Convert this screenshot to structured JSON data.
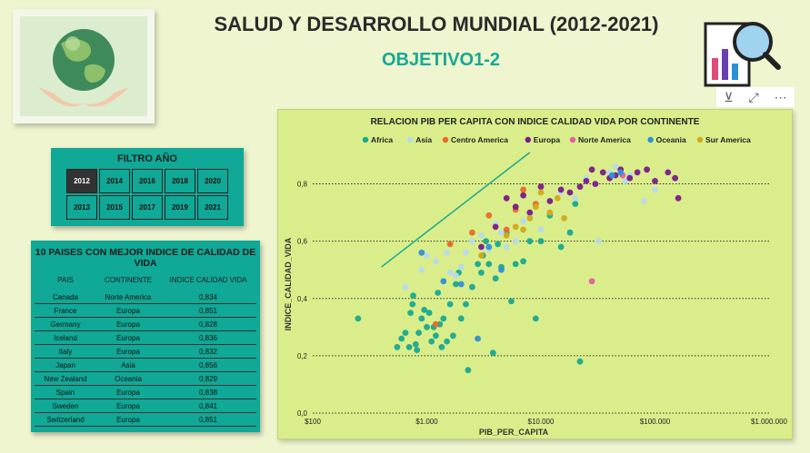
{
  "header": {
    "title": "SALUD Y DESARROLLO MUNDIAL (2012-2021)",
    "subtitle": "OBJETIVO1-2"
  },
  "icons": {
    "logo": "globe-hands-icon",
    "report": "report-search-icon",
    "filter": "filter-icon",
    "focus": "focus-mode-icon",
    "more": "more-options-icon"
  },
  "filter": {
    "title": "FILTRO AÑO",
    "years": [
      "2012",
      "2014",
      "2016",
      "2018",
      "2020",
      "2013",
      "2015",
      "2017",
      "2019",
      "2021"
    ],
    "selected": "2012"
  },
  "table": {
    "title": "10 PAISES CON MEJOR INDICE DE CALIDAD DE VIDA",
    "columns": [
      "PAIS",
      "CONTINENTE",
      "INDICE CALIDAD VIDA"
    ],
    "rows": [
      [
        "Canada",
        "Norte America",
        "0,834"
      ],
      [
        "France",
        "Europa",
        "0,851"
      ],
      [
        "Germany",
        "Europa",
        "0,828"
      ],
      [
        "Iceland",
        "Europa",
        "0,836"
      ],
      [
        "Italy",
        "Europa",
        "0,832"
      ],
      [
        "Japan",
        "Asia",
        "0,856"
      ],
      [
        "New Zealand",
        "Oceania",
        "0,829"
      ],
      [
        "Spain",
        "Europa",
        "0,838"
      ],
      [
        "Sweden",
        "Europa",
        "0,841"
      ],
      [
        "Switzerland",
        "Europa",
        "0,851"
      ]
    ]
  },
  "chart_data": {
    "type": "scatter",
    "title": "RELACION PIB PER CAPITA CON INDICE CALIDAD VIDA POR CONTINENTE",
    "xlabel": "PIB_PER_CAPITA",
    "ylabel": "INDICE_CALIDAD_VIDA",
    "x_scale": "log",
    "xlim": [
      100,
      1000000
    ],
    "ylim": [
      0,
      0.9
    ],
    "x_ticks": [
      {
        "value": 100,
        "label": "$100"
      },
      {
        "value": 1000,
        "label": "$1.000"
      },
      {
        "value": 10000,
        "label": "$10.000"
      },
      {
        "value": 100000,
        "label": "$100.000"
      },
      {
        "value": 1000000,
        "label": "$1.000.000"
      }
    ],
    "y_ticks": [
      {
        "value": 0,
        "label": "0,0"
      },
      {
        "value": 0.2,
        "label": "0,2"
      },
      {
        "value": 0.4,
        "label": "0,4"
      },
      {
        "value": 0.6,
        "label": "0,6"
      },
      {
        "value": 0.8,
        "label": "0,8"
      }
    ],
    "grid": "horizontal dotted",
    "legend_position": "top",
    "trend_line": [
      [
        400,
        0.51
      ],
      [
        8000,
        0.91
      ]
    ],
    "series": [
      {
        "name": "Africa",
        "color": "#19a88f",
        "points": [
          [
            250,
            0.33
          ],
          [
            550,
            0.23
          ],
          [
            600,
            0.26
          ],
          [
            650,
            0.28
          ],
          [
            700,
            0.23
          ],
          [
            720,
            0.35
          ],
          [
            750,
            0.38
          ],
          [
            760,
            0.41
          ],
          [
            800,
            0.24
          ],
          [
            820,
            0.22
          ],
          [
            850,
            0.28
          ],
          [
            900,
            0.33
          ],
          [
            950,
            0.36
          ],
          [
            1000,
            0.3
          ],
          [
            1050,
            0.35
          ],
          [
            1100,
            0.25
          ],
          [
            1150,
            0.3
          ],
          [
            1200,
            0.27
          ],
          [
            1250,
            0.42
          ],
          [
            1300,
            0.31
          ],
          [
            1350,
            0.23
          ],
          [
            1400,
            0.33
          ],
          [
            1500,
            0.25
          ],
          [
            1600,
            0.38
          ],
          [
            1700,
            0.27
          ],
          [
            1800,
            0.45
          ],
          [
            1900,
            0.49
          ],
          [
            2000,
            0.33
          ],
          [
            2200,
            0.38
          ],
          [
            2300,
            0.15
          ],
          [
            2500,
            0.44
          ],
          [
            2800,
            0.52
          ],
          [
            3000,
            0.49
          ],
          [
            3100,
            0.55
          ],
          [
            3300,
            0.6
          ],
          [
            3500,
            0.52
          ],
          [
            3800,
            0.21
          ],
          [
            4000,
            0.47
          ],
          [
            4200,
            0.59
          ],
          [
            4500,
            0.51
          ],
          [
            5000,
            0.63
          ],
          [
            5500,
            0.39
          ],
          [
            6000,
            0.52
          ],
          [
            7000,
            0.53
          ],
          [
            8000,
            0.6
          ],
          [
            9000,
            0.33
          ],
          [
            10000,
            0.6
          ],
          [
            12000,
            0.69
          ],
          [
            15000,
            0.58
          ],
          [
            18000,
            0.63
          ],
          [
            20000,
            0.73
          ],
          [
            22000,
            0.18
          ]
        ]
      },
      {
        "name": "Asia",
        "color": "#b8d9ea",
        "points": [
          [
            650,
            0.44
          ],
          [
            900,
            0.5
          ],
          [
            1000,
            0.55
          ],
          [
            1200,
            0.53
          ],
          [
            1500,
            0.56
          ],
          [
            1600,
            0.49
          ],
          [
            1800,
            0.48
          ],
          [
            2000,
            0.51
          ],
          [
            2200,
            0.56
          ],
          [
            2500,
            0.6
          ],
          [
            3000,
            0.62
          ],
          [
            3500,
            0.57
          ],
          [
            4000,
            0.66
          ],
          [
            4500,
            0.63
          ],
          [
            5000,
            0.58
          ],
          [
            6000,
            0.6
          ],
          [
            7000,
            0.67
          ],
          [
            8000,
            0.69
          ],
          [
            9000,
            0.73
          ],
          [
            10000,
            0.64
          ],
          [
            12000,
            0.7
          ],
          [
            15000,
            0.77
          ],
          [
            20000,
            0.75
          ],
          [
            25000,
            0.82
          ],
          [
            30000,
            0.8
          ],
          [
            32000,
            0.6
          ],
          [
            40000,
            0.84
          ],
          [
            45000,
            0.86
          ],
          [
            55000,
            0.81
          ],
          [
            60000,
            0.83
          ],
          [
            80000,
            0.74
          ],
          [
            100000,
            0.78
          ]
        ]
      },
      {
        "name": "Centro America",
        "color": "#e86a2a",
        "points": [
          [
            1200,
            0.31
          ],
          [
            1600,
            0.59
          ],
          [
            2500,
            0.63
          ],
          [
            3500,
            0.69
          ],
          [
            5000,
            0.64
          ],
          [
            6000,
            0.71
          ],
          [
            7000,
            0.78
          ],
          [
            9000,
            0.73
          ]
        ]
      },
      {
        "name": "Europa",
        "color": "#7b1a8a",
        "points": [
          [
            3000,
            0.58
          ],
          [
            4000,
            0.65
          ],
          [
            5000,
            0.75
          ],
          [
            6000,
            0.72
          ],
          [
            7000,
            0.76
          ],
          [
            8000,
            0.7
          ],
          [
            10000,
            0.79
          ],
          [
            12000,
            0.74
          ],
          [
            15000,
            0.78
          ],
          [
            18000,
            0.77
          ],
          [
            22000,
            0.79
          ],
          [
            25000,
            0.81
          ],
          [
            28000,
            0.85
          ],
          [
            30000,
            0.8
          ],
          [
            35000,
            0.84
          ],
          [
            40000,
            0.82
          ],
          [
            45000,
            0.83
          ],
          [
            50000,
            0.85
          ],
          [
            60000,
            0.82
          ],
          [
            70000,
            0.84
          ],
          [
            85000,
            0.85
          ],
          [
            100000,
            0.81
          ],
          [
            130000,
            0.84
          ],
          [
            150000,
            0.82
          ],
          [
            160000,
            0.75
          ]
        ]
      },
      {
        "name": "Norte America",
        "color": "#e35fa0",
        "points": [
          [
            28000,
            0.46
          ],
          [
            52000,
            0.83
          ]
        ]
      },
      {
        "name": "Oceania",
        "color": "#2f8fd6",
        "points": [
          [
            900,
            0.56
          ],
          [
            1400,
            0.46
          ],
          [
            2000,
            0.45
          ],
          [
            2800,
            0.26
          ],
          [
            3500,
            0.58
          ],
          [
            4500,
            0.5
          ],
          [
            42000,
            0.83
          ],
          [
            50000,
            0.84
          ]
        ]
      },
      {
        "name": "Sur America",
        "color": "#d4a81a",
        "points": [
          [
            3000,
            0.55
          ],
          [
            5000,
            0.62
          ],
          [
            6000,
            0.65
          ],
          [
            7000,
            0.64
          ],
          [
            8000,
            0.68
          ],
          [
            9000,
            0.72
          ],
          [
            10000,
            0.77
          ],
          [
            12000,
            0.7
          ],
          [
            14000,
            0.75
          ],
          [
            16000,
            0.68
          ]
        ]
      }
    ]
  }
}
